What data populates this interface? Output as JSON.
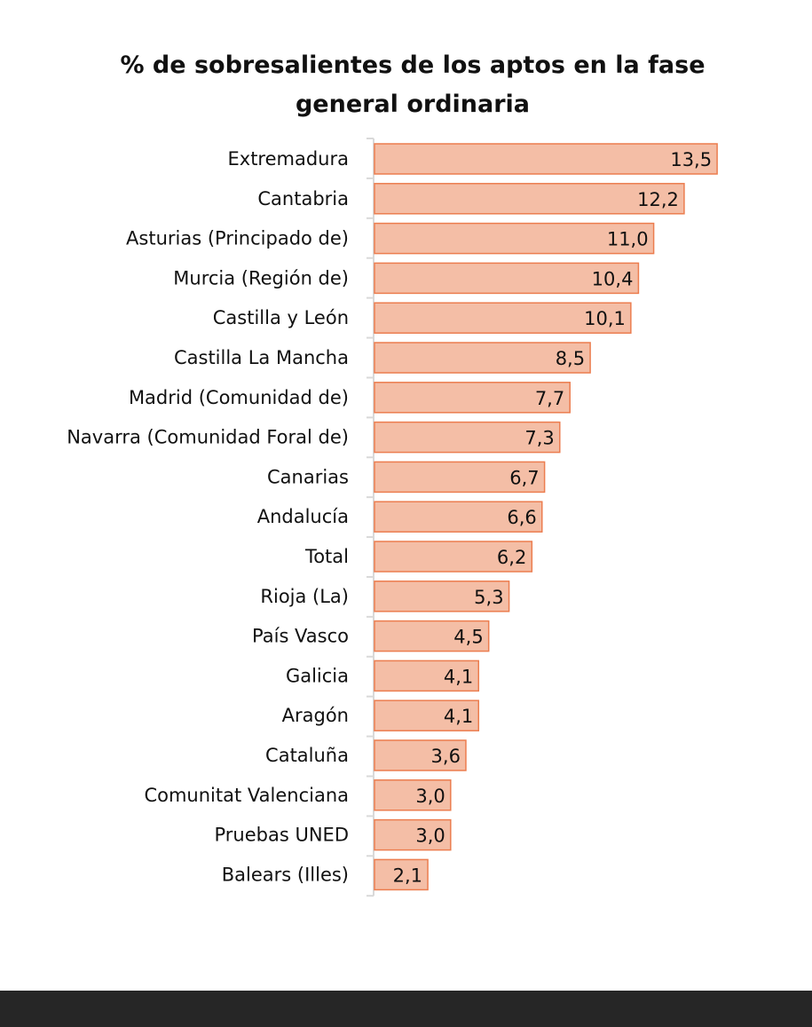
{
  "chart_data": {
    "type": "bar",
    "orientation": "horizontal",
    "title_lines": [
      "% de sobresalientes de los aptos en la fase",
      "general ordinaria"
    ],
    "categories": [
      "Extremadura",
      "Cantabria",
      "Asturias (Principado de)",
      "Murcia (Región de)",
      "Castilla y León",
      "Castilla  La Mancha",
      "Madrid (Comunidad de)",
      "Navarra (Comunidad Foral de)",
      "Canarias",
      "Andalucía",
      "Total",
      "Rioja (La)",
      "País Vasco",
      "Galicia",
      "Aragón",
      "Cataluña",
      "Comunitat Valenciana",
      "Pruebas UNED",
      "Balears (Illes)"
    ],
    "values": [
      13.5,
      12.2,
      11.0,
      10.4,
      10.1,
      8.5,
      7.7,
      7.3,
      6.7,
      6.6,
      6.2,
      5.3,
      4.5,
      4.1,
      4.1,
      3.6,
      3.0,
      3.0,
      2.1
    ],
    "value_labels": [
      "13,5",
      "12,2",
      "11,0",
      "10,4",
      "10,1",
      "8,5",
      "7,7",
      "7,3",
      "6,7",
      "6,6",
      "6,2",
      "5,3",
      "4,5",
      "4,1",
      "4,1",
      "3,6",
      "3,0",
      "3,0",
      "2,1"
    ],
    "xlim": [
      0,
      13.5
    ],
    "grid": false,
    "legend": "none",
    "colors": {
      "bar_fill": "#F4BEA6",
      "bar_stroke": "#EC7D4F",
      "axis": "#D9D9D9",
      "footer": "#262626"
    }
  }
}
